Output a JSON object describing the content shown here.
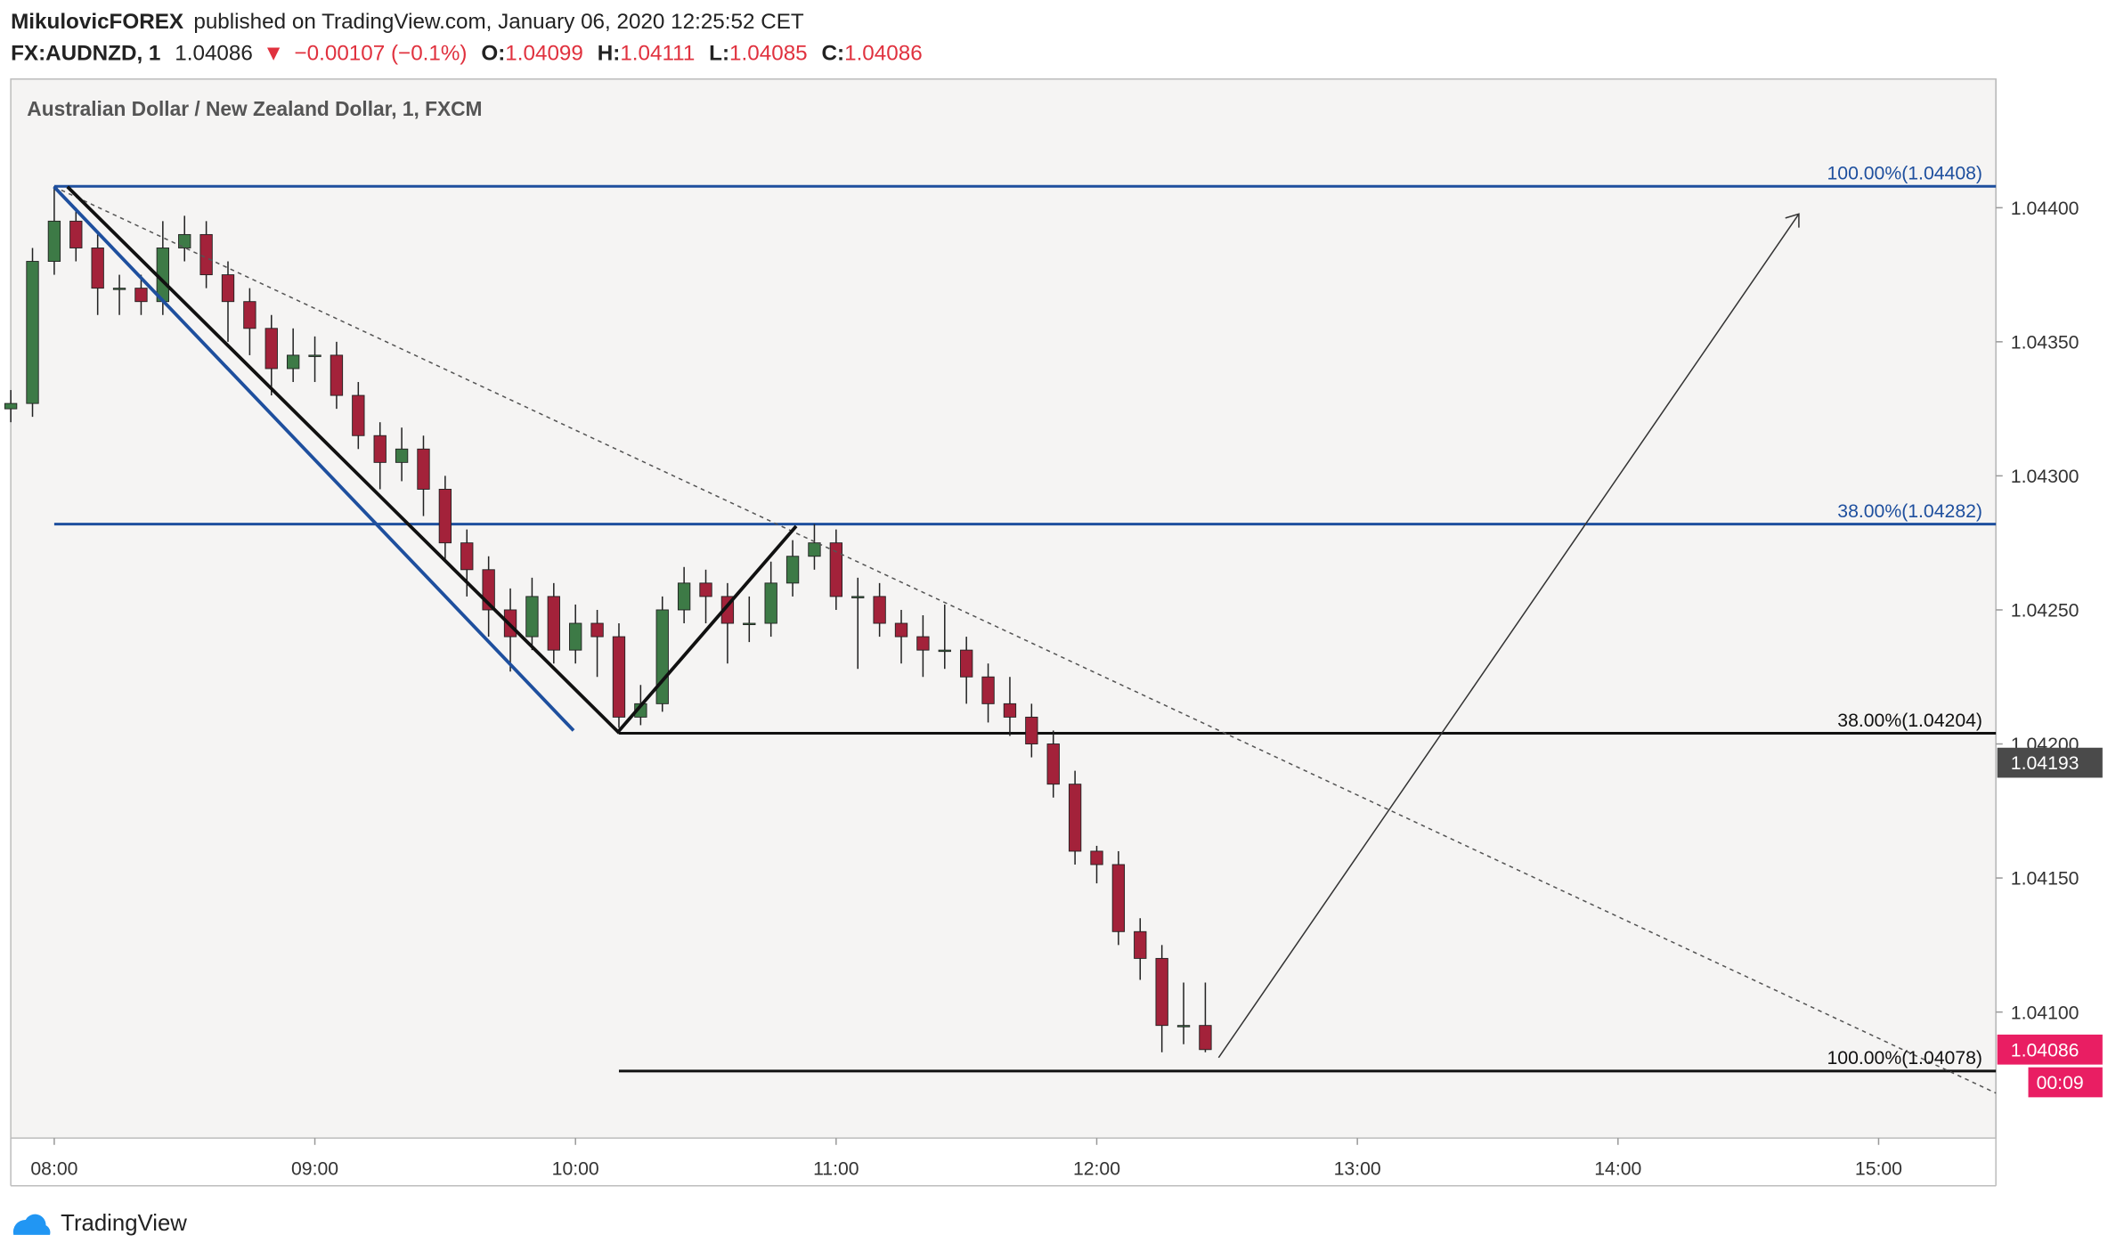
{
  "header": {
    "author": "MikulovicFOREX",
    "published": "published on TradingView.com, January 06, 2020 12:25:52 CET",
    "symbol": "FX:AUDNZD, 1",
    "last": "1.04086",
    "change_arrow": "▼",
    "change": "−0.00107 (−0.1%)",
    "ohlc": [
      {
        "label": "O:",
        "value": "1.04099"
      },
      {
        "label": "H:",
        "value": "1.04111"
      },
      {
        "label": "L:",
        "value": "1.04085"
      },
      {
        "label": "C:",
        "value": "1.04086"
      }
    ]
  },
  "chart_data": {
    "type": "candlestick",
    "title": "Australian Dollar / New Zealand Dollar, 1, FXCM",
    "x": [
      -10,
      -5,
      0,
      5,
      10,
      15,
      20,
      25,
      30,
      35,
      40,
      45,
      50,
      55,
      60,
      65,
      70,
      75,
      80,
      85,
      90,
      95,
      100,
      105,
      110,
      115,
      120,
      125,
      130,
      135,
      140,
      145,
      150,
      155,
      160,
      165,
      170,
      175,
      180,
      185,
      190,
      195,
      200,
      205,
      210,
      215,
      220,
      225,
      230,
      235,
      240,
      245,
      250,
      255,
      260,
      265
    ],
    "open": [
      1.04325,
      1.04327,
      1.0438,
      1.04395,
      1.04385,
      1.0437,
      1.0437,
      1.04365,
      1.04385,
      1.0439,
      1.04375,
      1.04365,
      1.04355,
      1.0434,
      1.04345,
      1.04345,
      1.0433,
      1.04315,
      1.04305,
      1.0431,
      1.04295,
      1.04275,
      1.04265,
      1.0425,
      1.0424,
      1.04255,
      1.04235,
      1.04245,
      1.0424,
      1.0421,
      1.04215,
      1.0425,
      1.0426,
      1.04255,
      1.04245,
      1.04245,
      1.0426,
      1.0427,
      1.04275,
      1.04255,
      1.04255,
      1.04245,
      1.0424,
      1.04235,
      1.04235,
      1.04225,
      1.04215,
      1.0421,
      1.042,
      1.04185,
      1.0416,
      1.04155,
      1.0413,
      1.0412,
      1.04095,
      1.04095
    ],
    "high": [
      1.04332,
      1.04385,
      1.04408,
      1.044,
      1.0439,
      1.04375,
      1.04375,
      1.04395,
      1.04397,
      1.04395,
      1.0438,
      1.0437,
      1.0436,
      1.04355,
      1.04352,
      1.0435,
      1.04335,
      1.0432,
      1.04318,
      1.04315,
      1.043,
      1.0428,
      1.0427,
      1.04258,
      1.04262,
      1.0426,
      1.04252,
      1.0425,
      1.04245,
      1.04222,
      1.04255,
      1.04266,
      1.04265,
      1.0426,
      1.04255,
      1.04268,
      1.04276,
      1.04282,
      1.0428,
      1.04262,
      1.0426,
      1.0425,
      1.04248,
      1.04252,
      1.0424,
      1.0423,
      1.04225,
      1.04215,
      1.04205,
      1.0419,
      1.04162,
      1.0416,
      1.04135,
      1.04125,
      1.04111,
      1.04111
    ],
    "low": [
      1.0432,
      1.04322,
      1.04375,
      1.0438,
      1.0436,
      1.0436,
      1.0436,
      1.0436,
      1.0438,
      1.0437,
      1.0435,
      1.04345,
      1.0433,
      1.04335,
      1.04335,
      1.04325,
      1.0431,
      1.04295,
      1.04298,
      1.04285,
      1.04268,
      1.04255,
      1.0424,
      1.04227,
      1.04235,
      1.0423,
      1.0423,
      1.04225,
      1.04206,
      1.04207,
      1.04212,
      1.04245,
      1.04245,
      1.0423,
      1.04238,
      1.0424,
      1.04255,
      1.04265,
      1.0425,
      1.04228,
      1.0424,
      1.0423,
      1.04225,
      1.04228,
      1.04215,
      1.04208,
      1.04203,
      1.04195,
      1.0418,
      1.04155,
      1.04148,
      1.04125,
      1.04112,
      1.04085,
      1.04088,
      1.04085
    ],
    "close": [
      1.04327,
      1.0438,
      1.04395,
      1.04385,
      1.0437,
      1.0437,
      1.04365,
      1.04385,
      1.0439,
      1.04375,
      1.04365,
      1.04355,
      1.0434,
      1.04345,
      1.04345,
      1.0433,
      1.04315,
      1.04305,
      1.0431,
      1.04295,
      1.04275,
      1.04265,
      1.0425,
      1.0424,
      1.04255,
      1.04235,
      1.04245,
      1.0424,
      1.0421,
      1.04215,
      1.0425,
      1.0426,
      1.04255,
      1.04245,
      1.04245,
      1.0426,
      1.0427,
      1.04275,
      1.04255,
      1.04255,
      1.04245,
      1.0424,
      1.04235,
      1.04235,
      1.04225,
      1.04215,
      1.0421,
      1.042,
      1.04185,
      1.0416,
      1.04155,
      1.0413,
      1.0412,
      1.04095,
      1.04095,
      1.04086
    ],
    "up_color": "#3d7a46",
    "down_color": "#a3223a",
    "xlim": [
      -10,
      447
    ],
    "ylim": [
      1.04053,
      1.04448
    ],
    "xticks": [
      {
        "value": 0,
        "label": "08:00"
      },
      {
        "value": 60,
        "label": "09:00"
      },
      {
        "value": 120,
        "label": "10:00"
      },
      {
        "value": 180,
        "label": "11:00"
      },
      {
        "value": 240,
        "label": "12:00"
      },
      {
        "value": 300,
        "label": "13:00"
      },
      {
        "value": 360,
        "label": "14:00"
      },
      {
        "value": 420,
        "label": "15:00"
      }
    ],
    "yticks": [
      {
        "value": 1.041,
        "label": "1.04100"
      },
      {
        "value": 1.0415,
        "label": "1.04150"
      },
      {
        "value": 1.042,
        "label": "1.04200"
      },
      {
        "value": 1.0425,
        "label": "1.04250"
      },
      {
        "value": 1.043,
        "label": "1.04300"
      },
      {
        "value": 1.0435,
        "label": "1.04350"
      },
      {
        "value": 1.044,
        "label": "1.04400"
      }
    ],
    "levels": [
      {
        "value": 1.04408,
        "label": "100.00%(1.04408)",
        "color": "#1e4f9e"
      },
      {
        "value": 1.04282,
        "label": "38.00%(1.04282)",
        "color": "#1e4f9e"
      },
      {
        "value": 1.04204,
        "label": "38.00%(1.04204)",
        "color": "#111111"
      },
      {
        "value": 1.04078,
        "label": "100.00%(1.04078)",
        "color": "#111111"
      }
    ],
    "price_tags": [
      {
        "value": 1.04193,
        "color": "#4a4a4a"
      },
      {
        "value": 1.04086,
        "color": "#e91e63",
        "countdown": "00:09"
      }
    ]
  },
  "footer": {
    "brand": "TradingView"
  }
}
